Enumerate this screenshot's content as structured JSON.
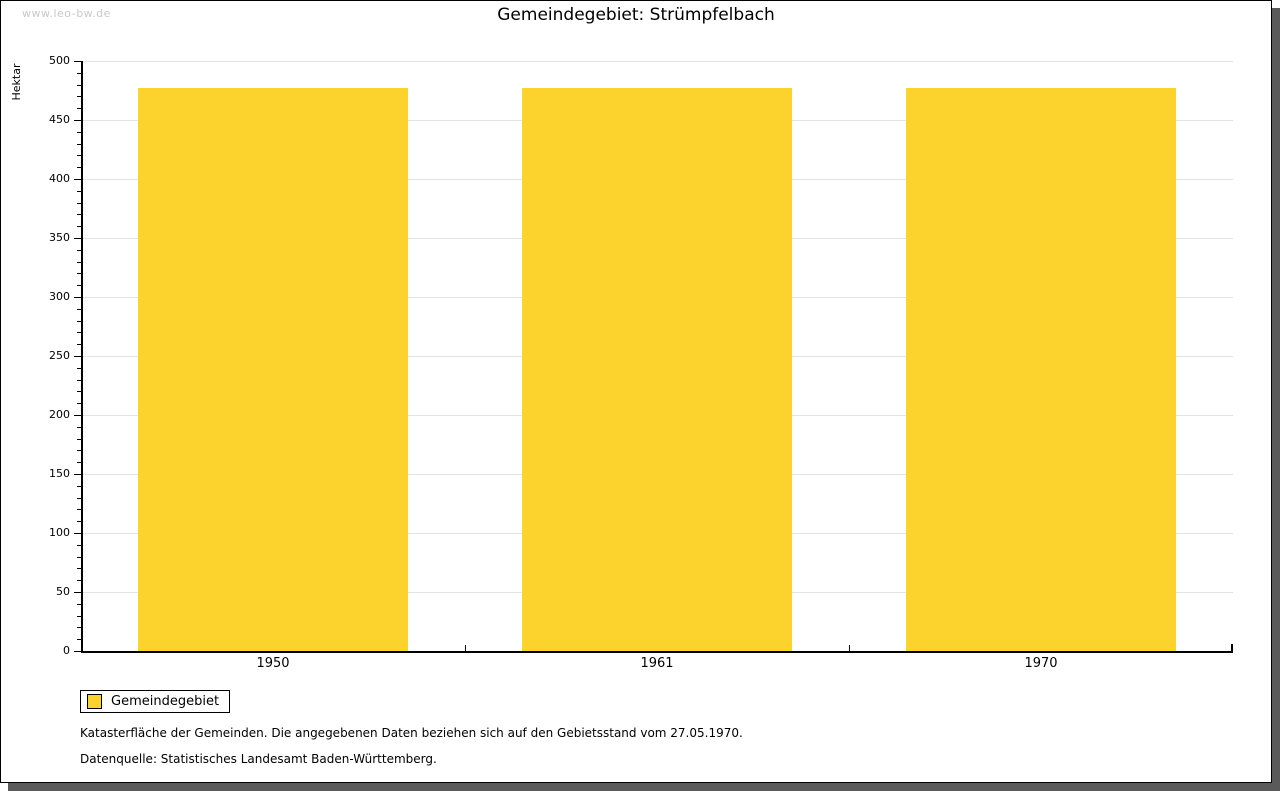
{
  "watermark": "www.leo-bw.de",
  "title": "Gemeindegebiet: Strümpfelbach",
  "chart_data": {
    "type": "bar",
    "title": "Gemeindegebiet: Strümpfelbach",
    "categories": [
      "1950",
      "1961",
      "1970"
    ],
    "series": [
      {
        "name": "Gemeindegebiet",
        "values": [
          477,
          477,
          477
        ],
        "color": "#fcd32d"
      }
    ],
    "xlabel": "",
    "ylabel": "Hektar",
    "ylim": [
      0,
      500
    ],
    "ytick_step": 50,
    "ytick_minor_step": 10,
    "grid": true,
    "legend_position": "bottom-left"
  },
  "legend": {
    "label": "Gemeindegebiet",
    "swatch_color": "#fcd32d"
  },
  "footnotes": [
    "Katasterfläche der Gemeinden. Die angegebenen Daten beziehen sich auf den Gebietsstand vom 27.05.1970.",
    "Datenquelle: Statistisches Landesamt Baden-Württemberg."
  ],
  "colors": {
    "bar": "#fcd32d",
    "grid": "#e3e3e3",
    "axis": "#000000",
    "watermark": "#c9c9c9",
    "shadow": "#5a5a5a",
    "background": "#ffffff"
  }
}
